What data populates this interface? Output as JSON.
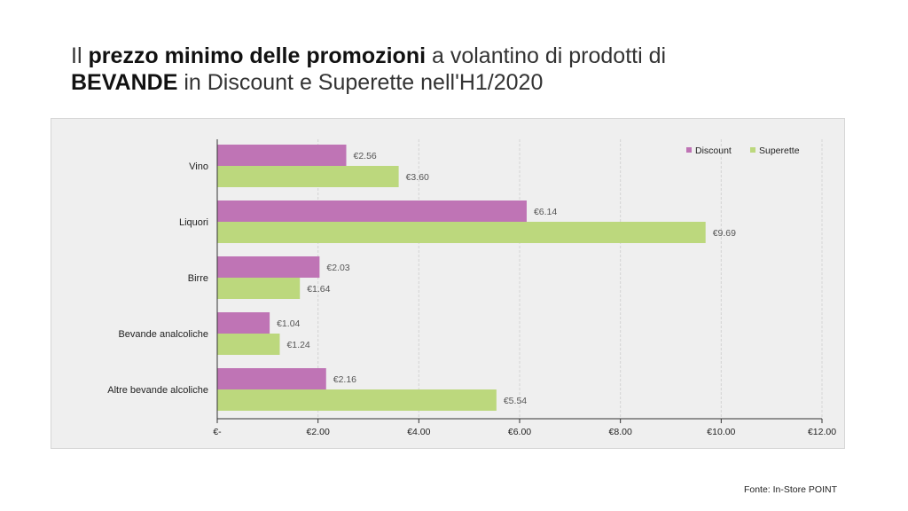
{
  "title": {
    "line1_pre": "Il ",
    "line1_bold": "prezzo minimo delle promozioni",
    "line1_post": " a volantino di prodotti di",
    "line2_bold": "BEVANDE",
    "line2_post": " in Discount e Superette nell'H1/2020"
  },
  "source": "Fonte: In-Store POINT",
  "colors": {
    "discount": "#bf74b5",
    "superette": "#bcd87d",
    "axis": "#333333"
  },
  "chart_data": {
    "type": "bar",
    "orientation": "horizontal",
    "categories": [
      "Vino",
      "Liquori",
      "Birre",
      "Bevande analcoliche",
      "Altre bevande alcoliche"
    ],
    "series": [
      {
        "name": "Discount",
        "values": [
          2.56,
          6.14,
          2.03,
          1.04,
          2.16
        ],
        "labels": [
          "€2.56",
          "€6.14",
          "€2.03",
          "€1.04",
          "€2.16"
        ]
      },
      {
        "name": "Superette",
        "values": [
          3.6,
          9.69,
          1.64,
          1.24,
          5.54
        ],
        "labels": [
          "€3.60",
          "€9.69",
          "€1.64",
          "€1.24",
          "€5.54"
        ]
      }
    ],
    "xlim": [
      0,
      12
    ],
    "xticks": [
      0,
      2,
      4,
      6,
      8,
      10,
      12
    ],
    "xtick_labels": [
      "€-",
      "€2.00",
      "€4.00",
      "€6.00",
      "€8.00",
      "€10.00",
      "€12.00"
    ],
    "legend_position": "top-right",
    "grid": true
  }
}
